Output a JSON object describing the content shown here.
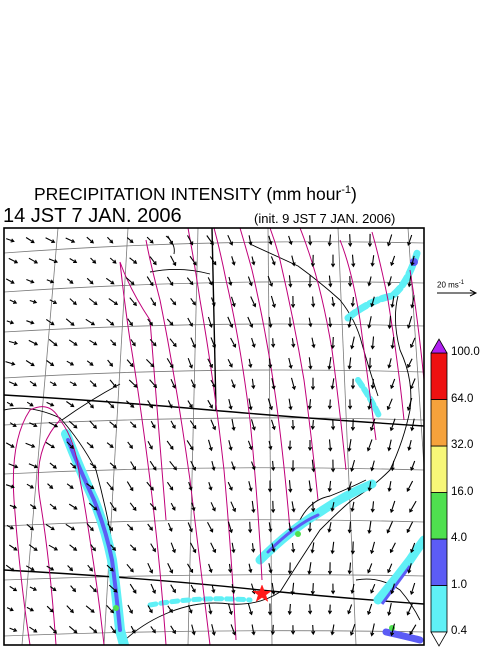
{
  "title": {
    "main": "PRECIPITATION INTENSITY (mm hour",
    "exp": "-1",
    "close": ")"
  },
  "valid_time": "14 JST 7 JAN. 2006",
  "init_time": "(init. 9 JST 7 JAN. 2006)",
  "reference_vector": {
    "label": "20 ms",
    "exp": "-1"
  },
  "colorbar": {
    "levels": [
      "0.4",
      "1.0",
      "4.0",
      "16.0",
      "32.0",
      "64.0",
      "100.0"
    ],
    "colors": [
      "#5ff0f6",
      "#5c5cf5",
      "#4fe04f",
      "#f7f778",
      "#f5a23c",
      "#ee1111"
    ],
    "over_color": "#b020f0",
    "under_color": "#ffffff"
  },
  "map_colors": {
    "contour": "#c0007a",
    "coast": "#000000",
    "grid": "#7a7a7a",
    "marker": "#ff1a1a"
  },
  "precip_colors": [
    "#5ff0f6",
    "#5c5cf5",
    "#4fe04f",
    "#f7f778",
    "#f5a23c",
    "#ee1111"
  ]
}
